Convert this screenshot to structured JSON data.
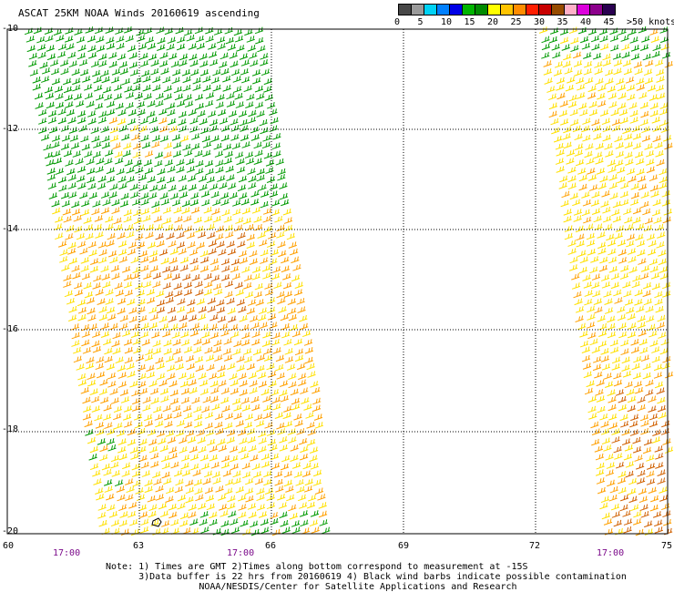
{
  "title": "ASCAT 25KM NOAA Winds 20160619 ascending",
  "legend": {
    "colors": [
      "#474747",
      "#9a9a9a",
      "#00d2f5",
      "#0080ff",
      "#0000e6",
      "#00b400",
      "#008a00",
      "#ffff00",
      "#ffc400",
      "#ff8c00",
      "#ff1e00",
      "#c80000",
      "#964b00",
      "#ffb0c8",
      "#dc00dc",
      "#8c008c",
      "#2a0050"
    ],
    "labels": [
      "0",
      "5",
      "10",
      "15",
      "20",
      "25",
      "30",
      "35",
      "40",
      "45",
      ">50 knots"
    ],
    "unit": "knots"
  },
  "axes": {
    "y_labels": [
      "-10",
      "-12",
      "-14",
      "-16",
      "-18",
      "-20"
    ],
    "x_labels": [
      "60",
      "63",
      "66",
      "69",
      "72",
      "75"
    ]
  },
  "times": [
    "17:00",
    "17:00",
    "17:00"
  ],
  "notes": [
    "Note: 1) Times are GMT 2)Times along bottom correspond to measurement at -15S",
    "      3)Data buffer is 22 hrs from 20160619 4) Black wind barbs indicate possible contamination",
    "                 NOAA/NESDIS/Center for Satellite Applications and Research"
  ],
  "map": {
    "swath_colors": {
      "green": "#009a00",
      "yellow": "#ffe000",
      "orange": "#ffa000",
      "darkorange": "#d06000"
    }
  }
}
